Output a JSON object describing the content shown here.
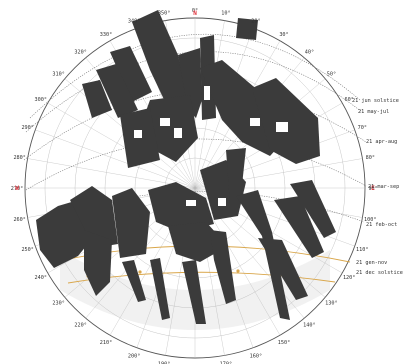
{
  "compass": {
    "north": "N",
    "east": "E",
    "west": "W"
  },
  "azimuth_labels": [
    "350°",
    "0°",
    "10°",
    "20°",
    "30°",
    "40°",
    "50°",
    "60°",
    "70°",
    "80°",
    "90°",
    "100°",
    "110°",
    "120°",
    "130°",
    "140°",
    "150°",
    "160°",
    "170°",
    "180°",
    "190°",
    "200°",
    "210°",
    "220°",
    "230°",
    "240°",
    "250°",
    "260°",
    "270°",
    "280°",
    "290°",
    "300°",
    "310°",
    "320°",
    "330°",
    "340°"
  ],
  "sun_paths": [
    {
      "label": "21 jun solstice"
    },
    {
      "label": "21 may-jul"
    },
    {
      "label": "21 apr-aug"
    },
    {
      "label": "21 mar-sep"
    },
    {
      "label": "21 feb-oct"
    },
    {
      "label": "21 gen-nov"
    },
    {
      "label": "21 dec solstice"
    }
  ],
  "colors": {
    "obstruction": "#3b3b3b",
    "sky_shading": "#e6e6e6",
    "sun_path_winter": "#d9a64a",
    "grid": "#b8b8b8",
    "cardinal": "#e0303a"
  }
}
